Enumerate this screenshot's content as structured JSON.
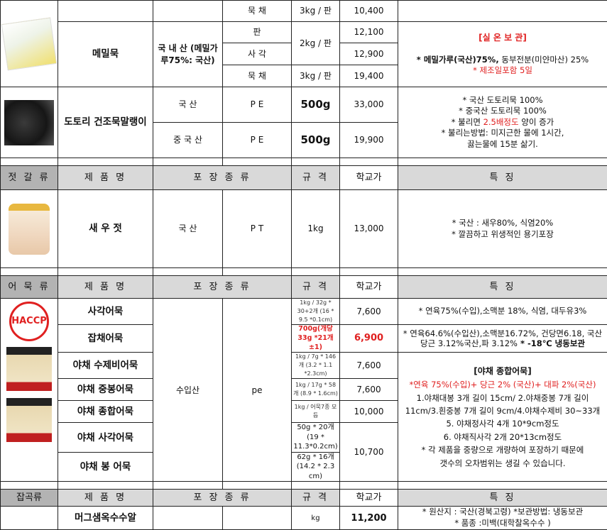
{
  "colors": {
    "header_bg": "#d9d9d9",
    "category_bg": "#b3b3b3",
    "accent_red": "#e02020"
  },
  "muk": {
    "row_top": {
      "pack": "묵  채",
      "spec": "3kg / 판",
      "price": "10,400"
    },
    "memil": {
      "name": "메밀묵",
      "origin": "국 내 산 (메밀가루75%: 국산)",
      "rows": [
        {
          "pack": "판",
          "price": "12,100"
        },
        {
          "pack": "사  각",
          "price": "12,900"
        },
        {
          "pack": "묵  채",
          "spec": "3kg / 판",
          "price": "19,400"
        }
      ],
      "spec_shared": "2kg / 판",
      "features": {
        "storage": "[실 온 보 관]",
        "ingredients_bold": "* 메밀가루(국산)75%,",
        "ingredients": " 동부전분(미얀마산) 25%",
        "shelf": "* 제조일포함 5일"
      }
    },
    "dotori": {
      "name": "도토리 건조묵말랭이",
      "rows": [
        {
          "origin": "국     산",
          "pack": "P E",
          "spec": "500g",
          "price": "33,000"
        },
        {
          "origin": "중 국 산",
          "pack": "P E",
          "spec": "500g",
          "price": "19,900"
        }
      ],
      "features": [
        "* 국산 도토리묵 100%",
        "* 중국산 도토리묵 100%"
      ],
      "f3_a": "* 불리면 ",
      "f3_red": "2.5배정도",
      "f3_b": " 양이 증가",
      "f4": "* 불리는방법: 미지근한 물에 1시간,",
      "f5": "끓는물에 15분 삶기."
    }
  },
  "jeotgal": {
    "header": {
      "category": "젓 갈 류",
      "name": "제 품 명",
      "pack": "포 장 종 류",
      "spec": "규 격",
      "price": "학교가",
      "features": "특    징"
    },
    "item": {
      "name": "새 우 젓",
      "origin": "국     산",
      "pack": "P T",
      "spec": "1kg",
      "price": "13,000",
      "features": [
        "* 국산 : 새우80%, 식염20%",
        "* 깔끔하고 위생적인 용기포장"
      ]
    }
  },
  "eomuk": {
    "header": {
      "category": "어 묵 류",
      "name": "제 품 명",
      "pack": "포 장 종 류",
      "spec": "규 격",
      "price": "학교가",
      "features": "특    징"
    },
    "logo": "HACCP",
    "origin": "수입산",
    "pack": "pe",
    "items": [
      {
        "name": "사각어묵",
        "spec": "1kg / 32g * 30+2개 (16 * 9.5 *0.1cm)",
        "price": "7,600"
      },
      {
        "name": "잡채어묵",
        "spec": "700g(개당33g *21개 ±1)",
        "price": "6,900"
      },
      {
        "name": "야채 수제비어묵",
        "spec": "1kg / 7g * 146개 (3.2 * 1.1 *2.3cm)",
        "price": "7,600"
      },
      {
        "name": "야채 중봉어묵",
        "spec": "1kg / 17g * 58개 (8.9 * 1.6cm)",
        "price": "7,600"
      },
      {
        "name": "야채 종합어묵",
        "spec": "1kg / 어묵7종 모듬",
        "price": "10,000"
      },
      {
        "name": "야채 사각어묵",
        "spec": "50g * 20개(19 * 11.3*0.2cm)",
        "price": "10,700"
      },
      {
        "name": "야채  봉  어묵",
        "spec": "62g * 16개 (14.2 * 2.3 cm)"
      }
    ],
    "feat1": "* 연육75%(수입),소맥분 18%, 식염, 대두유3%",
    "feat2": "* 연육64.6%(수입산),소맥분16.72%, 건당면6.18, 국산당근 3.12%국산,파 3.12%",
    "feat2_bold": " * -18℃ 냉동보관",
    "feat3_title": "[야채 종합어묵]",
    "feat3_red": "*연육 75%(수입)+ 당근 2% (국산)+ 대파 2%(국산)",
    "feat3_lines": [
      "1.야채대봉 3개 길이 15cm/ 2.야채중봉 7개 길이 11cm/3.흰중봉 7개 길이 9cm/4.야채수제비 30~33개",
      "5. 야채정사각 4개 10*9cm정도",
      "6. 야채직사각 2개 20*13cm정도",
      "* 각 제품을 중량으로 개량하여 포장하기 때문에",
      "갯수의 오차범위는 생길 수 있습니다."
    ]
  },
  "japgok": {
    "header": {
      "category": "잡곡류",
      "name": "제 품 명",
      "pack": "포 장 종 류",
      "spec": "규 격",
      "price": "학교가",
      "features": "특    징"
    },
    "item": {
      "name": "머그샘옥수수알",
      "spec": "kg",
      "price": "11,200",
      "features": [
        "* 원산지 : 국산(경북고령) *보관방법: 냉동보관",
        "* 품종 :미백(대학찰옥수수 )"
      ]
    }
  }
}
